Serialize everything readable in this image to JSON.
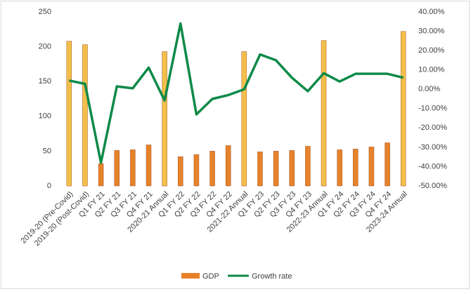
{
  "chart_data": {
    "type": "bar_line",
    "categories": [
      "2019-20 (Pre-Covid)",
      "2019-20 (Post-Covid)",
      "Q1 FY 21",
      "Q2 FY 21",
      "Q3 FY 21",
      "Q4 FY 21",
      "2020-21 Annual",
      "Q1 FY 22",
      "Q2 FY 22",
      "Q3 FY 22",
      "Q4 FY 22",
      "2021-22 Annual",
      "Q1 FY 23",
      "Q2 FY 23",
      "Q3 FY 23",
      "Q4 FY 23",
      "2022-23 Annual",
      "Q1 FY 24",
      "Q2 FY 24",
      "Q3 FY 24",
      "Q4 FY 24",
      "2023-24 Annual"
    ],
    "series": [
      {
        "name": "GDP",
        "type": "bar",
        "color": "#e8822a",
        "point_colors": [
          "#f2c04a",
          "#f2c04a",
          "#e8822a",
          "#e8822a",
          "#e8822a",
          "#e8822a",
          "#f2c04a",
          "#e8822a",
          "#e8822a",
          "#e8822a",
          "#e8822a",
          "#f2c04a",
          "#e8822a",
          "#e8822a",
          "#e8822a",
          "#e8822a",
          "#f2c04a",
          "#e8822a",
          "#e8822a",
          "#e8822a",
          "#e8822a",
          "#f2c04a"
        ],
        "values": [
          208,
          203,
          32,
          51,
          52,
          59,
          193,
          42,
          45,
          50,
          58,
          193,
          49,
          50,
          51,
          57,
          209,
          52,
          53,
          56,
          62,
          222
        ]
      },
      {
        "name": "Growth rate",
        "type": "line",
        "axis": "y2",
        "color": "#0e8a48",
        "values": [
          4.5,
          2.8,
          -38,
          1.5,
          0.5,
          11.2,
          -5.8,
          34,
          -13,
          -5,
          -3,
          0,
          18,
          15,
          6,
          -1,
          8.3,
          4,
          8,
          8,
          8,
          6
        ]
      }
    ],
    "ylim": [
      0,
      250
    ],
    "yticks": [
      0,
      50,
      100,
      150,
      200,
      250
    ],
    "y2lim": [
      -50,
      40
    ],
    "y2ticks": [
      {
        "value": -50,
        "label": "-50.00%"
      },
      {
        "value": -40,
        "label": "-40.00%"
      },
      {
        "value": -30,
        "label": "-30.00%"
      },
      {
        "value": -20,
        "label": "-20.00%"
      },
      {
        "value": -10,
        "label": "-10.00%"
      },
      {
        "value": 0,
        "label": "0.00%"
      },
      {
        "value": 10,
        "label": "10.00%"
      },
      {
        "value": 20,
        "label": "20.00%"
      },
      {
        "value": 30,
        "label": "30.00%"
      },
      {
        "value": 40,
        "label": "40.00%"
      }
    ],
    "grid": false,
    "legend": "bottom"
  }
}
